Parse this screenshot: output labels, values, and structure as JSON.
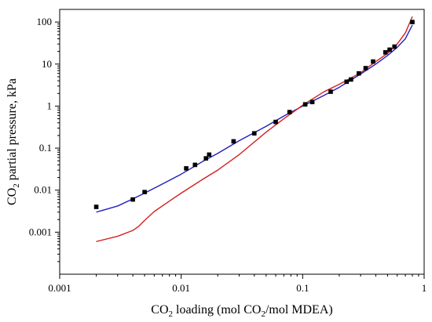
{
  "chart_data": {
    "type": "scatter",
    "xlabel": {
      "prefix": "CO",
      "sub": "2",
      "mid": " loading (mol CO",
      "sub2": "2",
      "suffix": "/mol MDEA)"
    },
    "ylabel": {
      "prefix": "CO",
      "sub": "2",
      "suffix": " partial pressure, kPa"
    },
    "xscale": "log",
    "yscale": "log",
    "xlim": [
      0.001,
      1
    ],
    "ylim": [
      0.0001,
      200
    ],
    "x_ticks": [
      {
        "value": 0.001,
        "label": "0.001"
      },
      {
        "value": 0.01,
        "label": "0.01"
      },
      {
        "value": 0.1,
        "label": "0.1"
      },
      {
        "value": 1,
        "label": "1"
      }
    ],
    "y_ticks": [
      {
        "value": 0.001,
        "label": "0.001"
      },
      {
        "value": 0.01,
        "label": "0.01"
      },
      {
        "value": 0.1,
        "label": "0.1"
      },
      {
        "value": 1,
        "label": "1"
      },
      {
        "value": 10,
        "label": "10"
      },
      {
        "value": 100,
        "label": "100"
      }
    ],
    "grid": false,
    "legend": "none",
    "series": [
      {
        "kind": "scatter",
        "marker": "square",
        "color": "#000000",
        "points": [
          [
            0.002,
            0.004
          ],
          [
            0.004,
            0.006
          ],
          [
            0.005,
            0.009
          ],
          [
            0.011,
            0.033
          ],
          [
            0.013,
            0.04
          ],
          [
            0.016,
            0.057
          ],
          [
            0.017,
            0.07
          ],
          [
            0.027,
            0.145
          ],
          [
            0.04,
            0.225
          ],
          [
            0.06,
            0.42
          ],
          [
            0.078,
            0.72
          ],
          [
            0.105,
            1.1
          ],
          [
            0.12,
            1.25
          ],
          [
            0.17,
            2.2
          ],
          [
            0.23,
            3.8
          ],
          [
            0.25,
            4.3
          ],
          [
            0.29,
            6.0
          ],
          [
            0.33,
            8.0
          ],
          [
            0.38,
            11.5
          ],
          [
            0.48,
            19.0
          ],
          [
            0.52,
            22.0
          ],
          [
            0.57,
            26.0
          ],
          [
            0.8,
            100.0
          ]
        ]
      },
      {
        "kind": "line",
        "color": "#1f1fbf",
        "points": [
          [
            0.002,
            0.003
          ],
          [
            0.003,
            0.0042
          ],
          [
            0.004,
            0.0062
          ],
          [
            0.005,
            0.0085
          ],
          [
            0.007,
            0.014
          ],
          [
            0.01,
            0.024
          ],
          [
            0.015,
            0.048
          ],
          [
            0.02,
            0.075
          ],
          [
            0.03,
            0.15
          ],
          [
            0.05,
            0.33
          ],
          [
            0.07,
            0.58
          ],
          [
            0.1,
            1.0
          ],
          [
            0.15,
            1.8
          ],
          [
            0.2,
            2.8
          ],
          [
            0.3,
            5.8
          ],
          [
            0.4,
            10.0
          ],
          [
            0.5,
            16.0
          ],
          [
            0.6,
            25.0
          ],
          [
            0.7,
            40.0
          ],
          [
            0.8,
            85.0
          ]
        ]
      },
      {
        "kind": "line",
        "color": "#d42020",
        "points": [
          [
            0.002,
            0.0006
          ],
          [
            0.003,
            0.0008
          ],
          [
            0.004,
            0.0011
          ],
          [
            0.0045,
            0.0014
          ],
          [
            0.005,
            0.0019
          ],
          [
            0.006,
            0.0031
          ],
          [
            0.008,
            0.0055
          ],
          [
            0.01,
            0.0085
          ],
          [
            0.015,
            0.018
          ],
          [
            0.02,
            0.03
          ],
          [
            0.03,
            0.07
          ],
          [
            0.05,
            0.24
          ],
          [
            0.07,
            0.5
          ],
          [
            0.1,
            1.05
          ],
          [
            0.15,
            2.2
          ],
          [
            0.2,
            3.3
          ],
          [
            0.3,
            6.2
          ],
          [
            0.4,
            11.5
          ],
          [
            0.5,
            18.0
          ],
          [
            0.6,
            30.0
          ],
          [
            0.7,
            55.0
          ],
          [
            0.8,
            135.0
          ]
        ]
      }
    ]
  }
}
